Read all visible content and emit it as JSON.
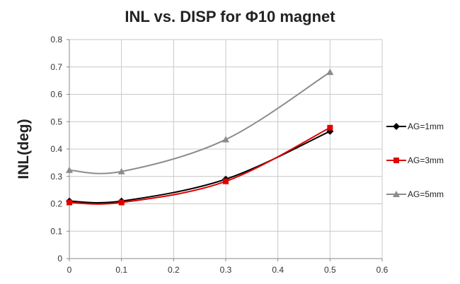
{
  "chart_data": {
    "type": "line",
    "title": "INL vs. DISP for Φ10 magnet",
    "xlabel": "",
    "ylabel": "INL(deg)",
    "xlim": [
      0,
      0.6
    ],
    "ylim": [
      0,
      0.8
    ],
    "x_ticks": [
      "0",
      "0.1",
      "0.2",
      "0.3",
      "0.4",
      "0.5",
      "0.6"
    ],
    "y_ticks": [
      "0",
      "0.1",
      "0.2",
      "0.3",
      "0.4",
      "0.5",
      "0.6",
      "0.7",
      "0.8"
    ],
    "grid": true,
    "legend_position": "right",
    "smooth": true,
    "series": [
      {
        "name": "AG=1mm",
        "color": "#000000",
        "marker": "diamond",
        "x": [
          0,
          0.1,
          0.3,
          0.5
        ],
        "y": [
          0.21,
          0.21,
          0.29,
          0.465
        ]
      },
      {
        "name": "AG=3mm",
        "color": "#e00000",
        "marker": "square",
        "x": [
          0,
          0.1,
          0.3,
          0.5
        ],
        "y": [
          0.205,
          0.205,
          0.282,
          0.478
        ]
      },
      {
        "name": "AG=5mm",
        "color": "#8c8c8c",
        "marker": "triangle",
        "x": [
          0,
          0.1,
          0.3,
          0.5
        ],
        "y": [
          0.323,
          0.318,
          0.435,
          0.681
        ]
      }
    ]
  }
}
